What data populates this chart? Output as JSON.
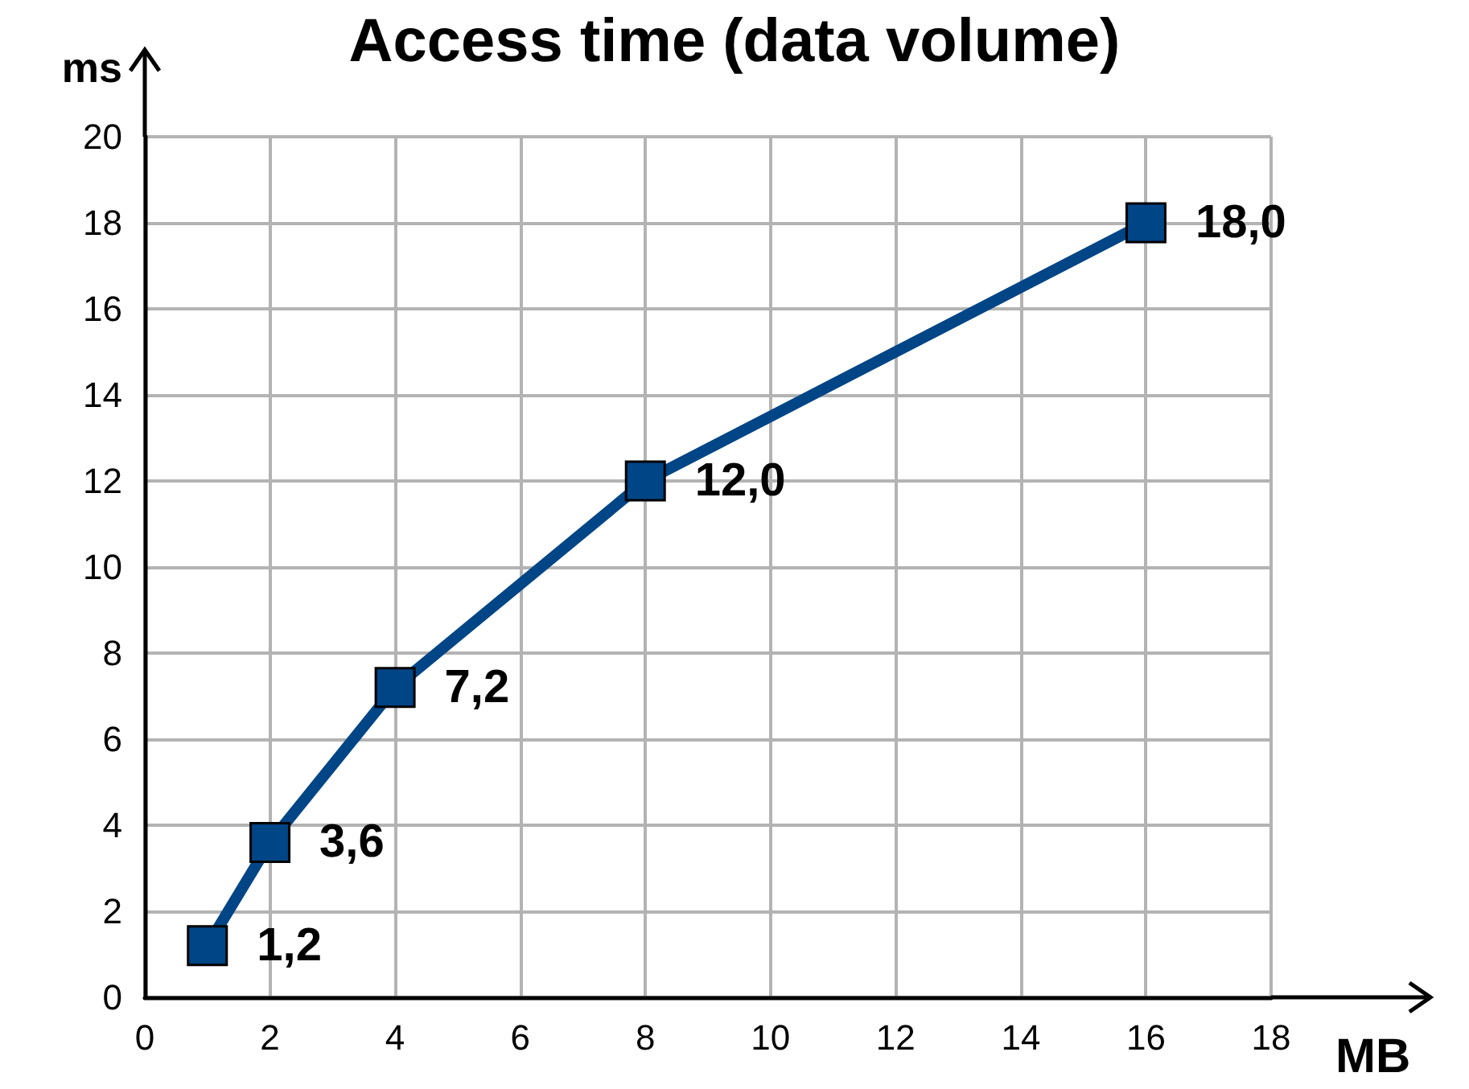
{
  "chart_data": {
    "type": "line",
    "title": "Access time (data volume)",
    "xlabel": "MB",
    "ylabel": "ms",
    "x": [
      1,
      2,
      4,
      8,
      16
    ],
    "series": [
      {
        "color": "#004586",
        "values": [
          1.2,
          3.6,
          7.2,
          12.0,
          18.0
        ],
        "value_labels": [
          "1,2",
          "3,6",
          "7,2",
          "12,0",
          "18,0"
        ]
      }
    ],
    "xlim": [
      0,
      18
    ],
    "xticks": [
      0,
      2,
      4,
      6,
      8,
      10,
      12,
      14,
      16,
      18
    ],
    "ylim": [
      0,
      20
    ],
    "yticks": [
      0,
      2,
      4,
      6,
      8,
      10,
      12,
      14,
      16,
      18,
      20
    ],
    "grid": true,
    "marker": "square",
    "line_style": "solid"
  }
}
